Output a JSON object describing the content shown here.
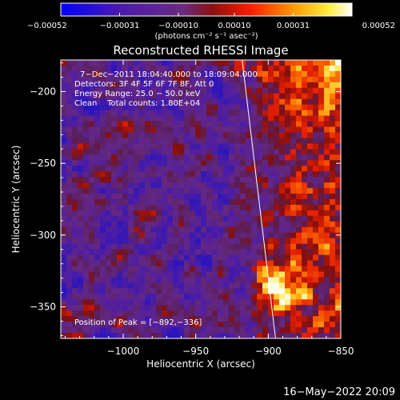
{
  "chart_data": {
    "type": "heatmap",
    "title": "Reconstructed RHESSI Image",
    "xlabel": "Heliocentric X (arcsec)",
    "ylabel": "Heliocentric Y (arcsec)",
    "xlim": [
      -1043,
      -850
    ],
    "ylim": [
      -372,
      -178
    ],
    "xticks": [
      -1000,
      -950,
      -900,
      -850
    ],
    "xtick_labels": [
      "−1000",
      "−950",
      "−900",
      "−850"
    ],
    "yticks": [
      -200,
      -250,
      -300,
      -350
    ],
    "ytick_labels": [
      "−200",
      "−250",
      "−300",
      "−350"
    ],
    "colorbar": {
      "min": -0.00052,
      "max": 0.00052,
      "ticks": [
        -0.00052,
        -0.00031,
        -0.0001,
        0.0001,
        0.00031,
        0.00052
      ],
      "tick_labels": [
        "−0.00052",
        "−0.00031",
        "−0.00010",
        "0.00010",
        "0.00031",
        "0.00052"
      ],
      "units_label": "(photons cm⁻² s⁻¹ asec⁻²)",
      "colors": [
        "#0000ff",
        "#5a1aa8",
        "#6b2a8a",
        "#8b1a1a",
        "#ff0000",
        "#ff8c00",
        "#ffee44",
        "#ffffff"
      ]
    },
    "limb_line": {
      "x": [
        -918,
        -895
      ],
      "y": [
        -178,
        -372
      ]
    },
    "peak": {
      "x": -892,
      "y": -336
    },
    "info_lines": [
      "7−Dec−2011 18:04:40.000 to 18:09:04.000",
      "Detectors: 3F 4F 5F 6F 7F 8F, Att 0",
      "Energy Range: 25.0 − 50.0 keV",
      "Clean    Total counts: 1.80E+04"
    ],
    "peak_label": "Position of Peak = [−892,−336]"
  },
  "timestamp": "16−May−2022 20:09"
}
